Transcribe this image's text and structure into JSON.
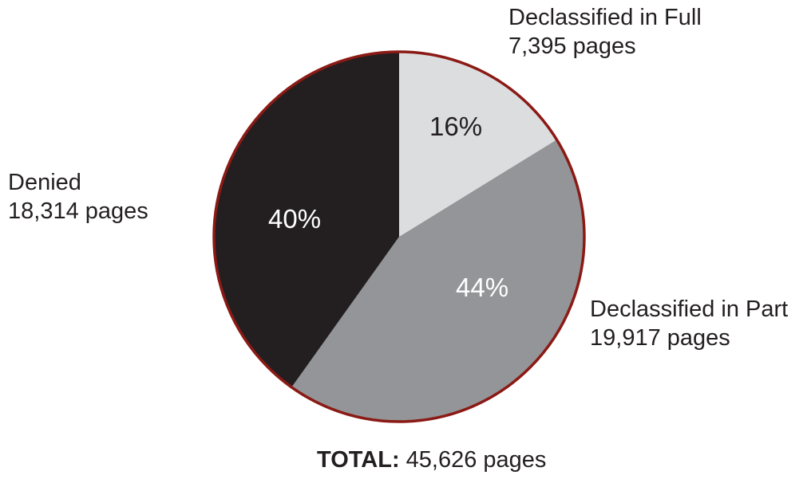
{
  "chart_data": {
    "type": "pie",
    "title": "",
    "slices": [
      {
        "label": "Declassified in Full",
        "value": 7395,
        "value_text": "7,395 pages",
        "percent_text": "16%",
        "color": "#dcdddf"
      },
      {
        "label": "Declassified in Part",
        "value": 19917,
        "value_text": "19,917 pages",
        "percent_text": "44%",
        "color": "#939598"
      },
      {
        "label": "Denied",
        "value": 18314,
        "value_text": "18,314 pages",
        "percent_text": "40%",
        "color": "#231f20"
      }
    ],
    "outline_color": "#8b1a15",
    "total": {
      "label": "TOTAL:",
      "value": 45626,
      "value_text": "45,626 pages"
    }
  }
}
